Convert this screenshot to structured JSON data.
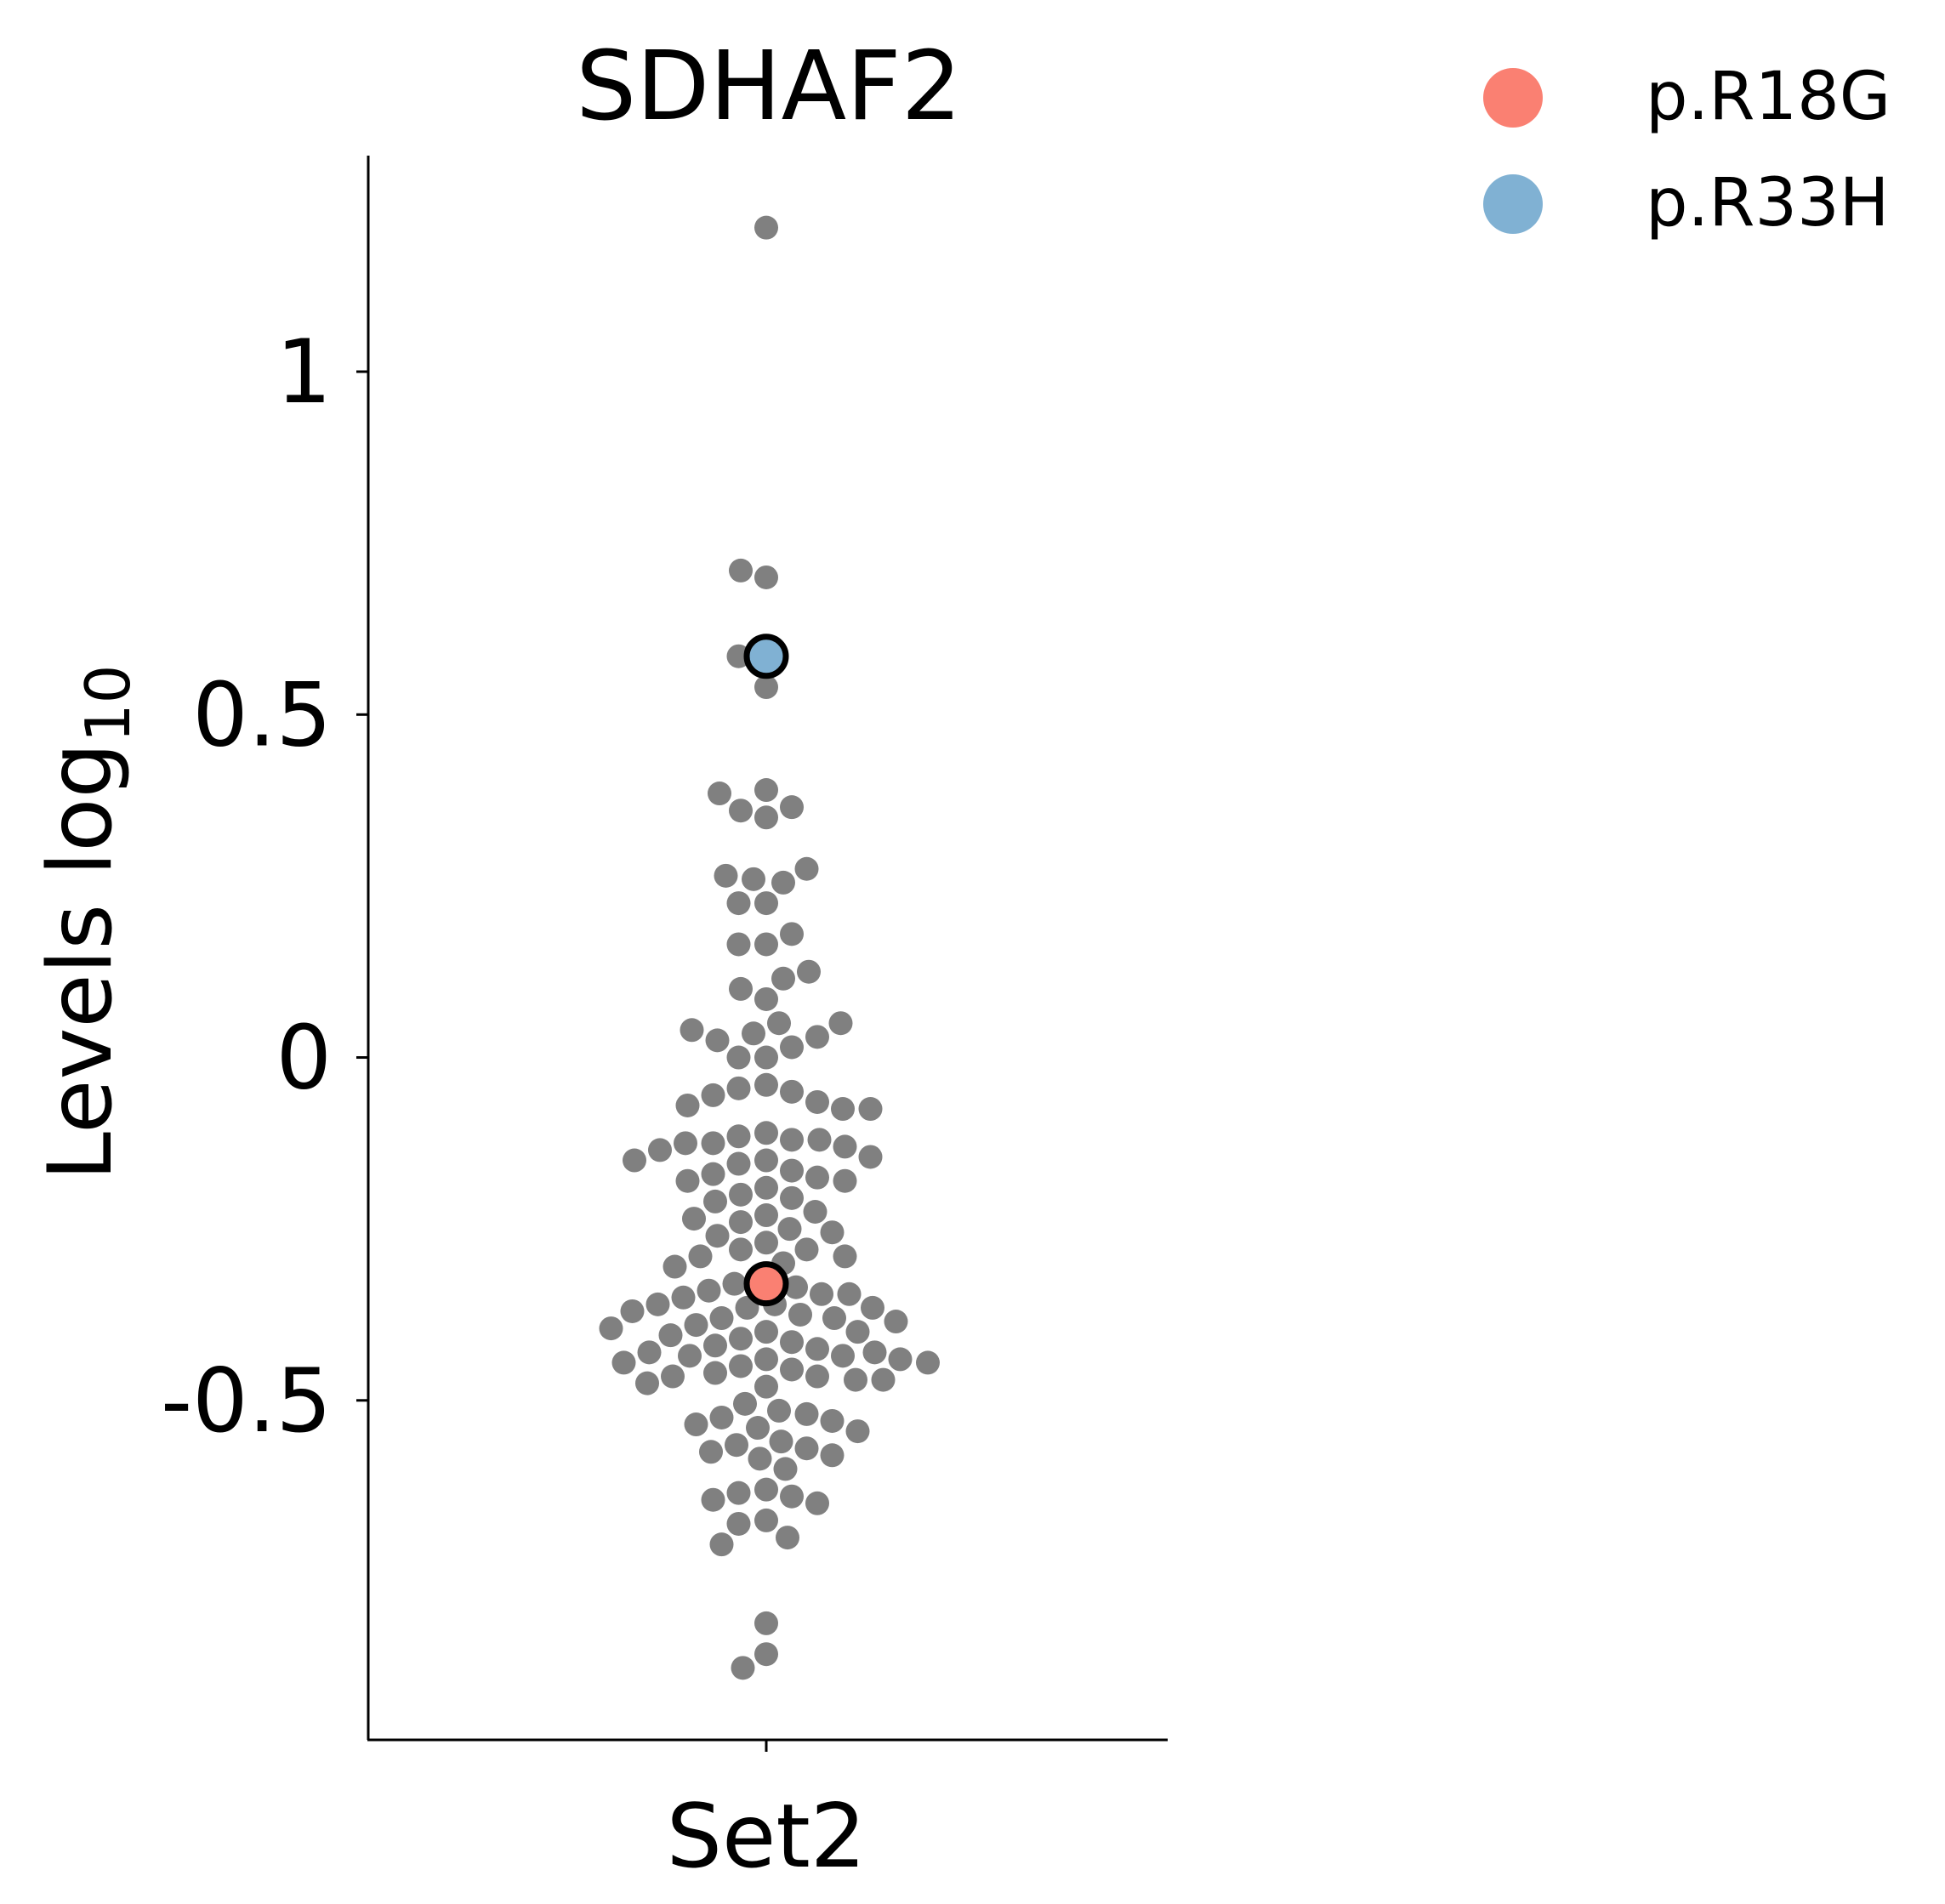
{
  "chart_data": {
    "type": "scatter",
    "title": "SDHAF2",
    "xlabel": "",
    "ylabel_main": "Levels log",
    "ylabel_sub": "10",
    "categories": [
      "Set2"
    ],
    "yticks": [
      {
        "value": 1,
        "label": "1"
      },
      {
        "value": 0.5,
        "label": "0.5"
      },
      {
        "value": 0,
        "label": "0"
      },
      {
        "value": -0.5,
        "label": "-0.5"
      }
    ],
    "ylim": [
      -0.995,
      1.315
    ],
    "grid": false,
    "legend_position": "top-right",
    "background_color": "#808080",
    "background_values": [
      1.21,
      0.71,
      0.7,
      0.585,
      0.585,
      0.54,
      0.39,
      0.385,
      0.365,
      0.36,
      0.35,
      0.275,
      0.26,
      0.265,
      0.255,
      0.225,
      0.225,
      0.18,
      0.165,
      0.165,
      0.125,
      0.115,
      0.1,
      0.085,
      0.04,
      0.035,
      0.03,
      0.025,
      0.05,
      0.05,
      0.015,
      0.0,
      0.0,
      -0.04,
      -0.045,
      -0.05,
      -0.055,
      -0.065,
      -0.07,
      -0.075,
      -0.075,
      -0.11,
      -0.115,
      -0.12,
      -0.12,
      -0.125,
      -0.125,
      -0.13,
      -0.135,
      -0.145,
      -0.15,
      -0.15,
      -0.155,
      -0.165,
      -0.17,
      -0.175,
      -0.18,
      -0.18,
      -0.19,
      -0.2,
      -0.205,
      -0.21,
      -0.225,
      -0.23,
      -0.235,
      -0.24,
      -0.25,
      -0.255,
      -0.26,
      -0.27,
      -0.28,
      -0.28,
      -0.29,
      -0.29,
      -0.3,
      -0.305,
      -0.325,
      -0.33,
      -0.335,
      -0.34,
      -0.345,
      -0.345,
      -0.35,
      -0.36,
      -0.36,
      -0.365,
      -0.365,
      -0.37,
      -0.375,
      -0.38,
      -0.38,
      -0.385,
      -0.39,
      -0.395,
      -0.4,
      -0.4,
      -0.405,
      -0.41,
      -0.415,
      -0.42,
      -0.425,
      -0.43,
      -0.43,
      -0.435,
      -0.435,
      -0.44,
      -0.44,
      -0.445,
      -0.445,
      -0.45,
      -0.455,
      -0.46,
      -0.465,
      -0.465,
      -0.47,
      -0.47,
      -0.475,
      -0.48,
      -0.505,
      -0.515,
      -0.52,
      -0.525,
      -0.53,
      -0.535,
      -0.54,
      -0.545,
      -0.56,
      -0.565,
      -0.57,
      -0.575,
      -0.58,
      -0.585,
      -0.6,
      -0.63,
      -0.635,
      -0.64,
      -0.645,
      -0.65,
      -0.675,
      -0.68,
      -0.7,
      -0.71,
      -0.825,
      -0.87,
      -0.89
    ],
    "series": [
      {
        "name": "p.R18G",
        "value": -0.33,
        "color": "#fa8072"
      },
      {
        "name": "p.R33H",
        "value": 0.585,
        "color": "#80b1d3"
      }
    ]
  }
}
